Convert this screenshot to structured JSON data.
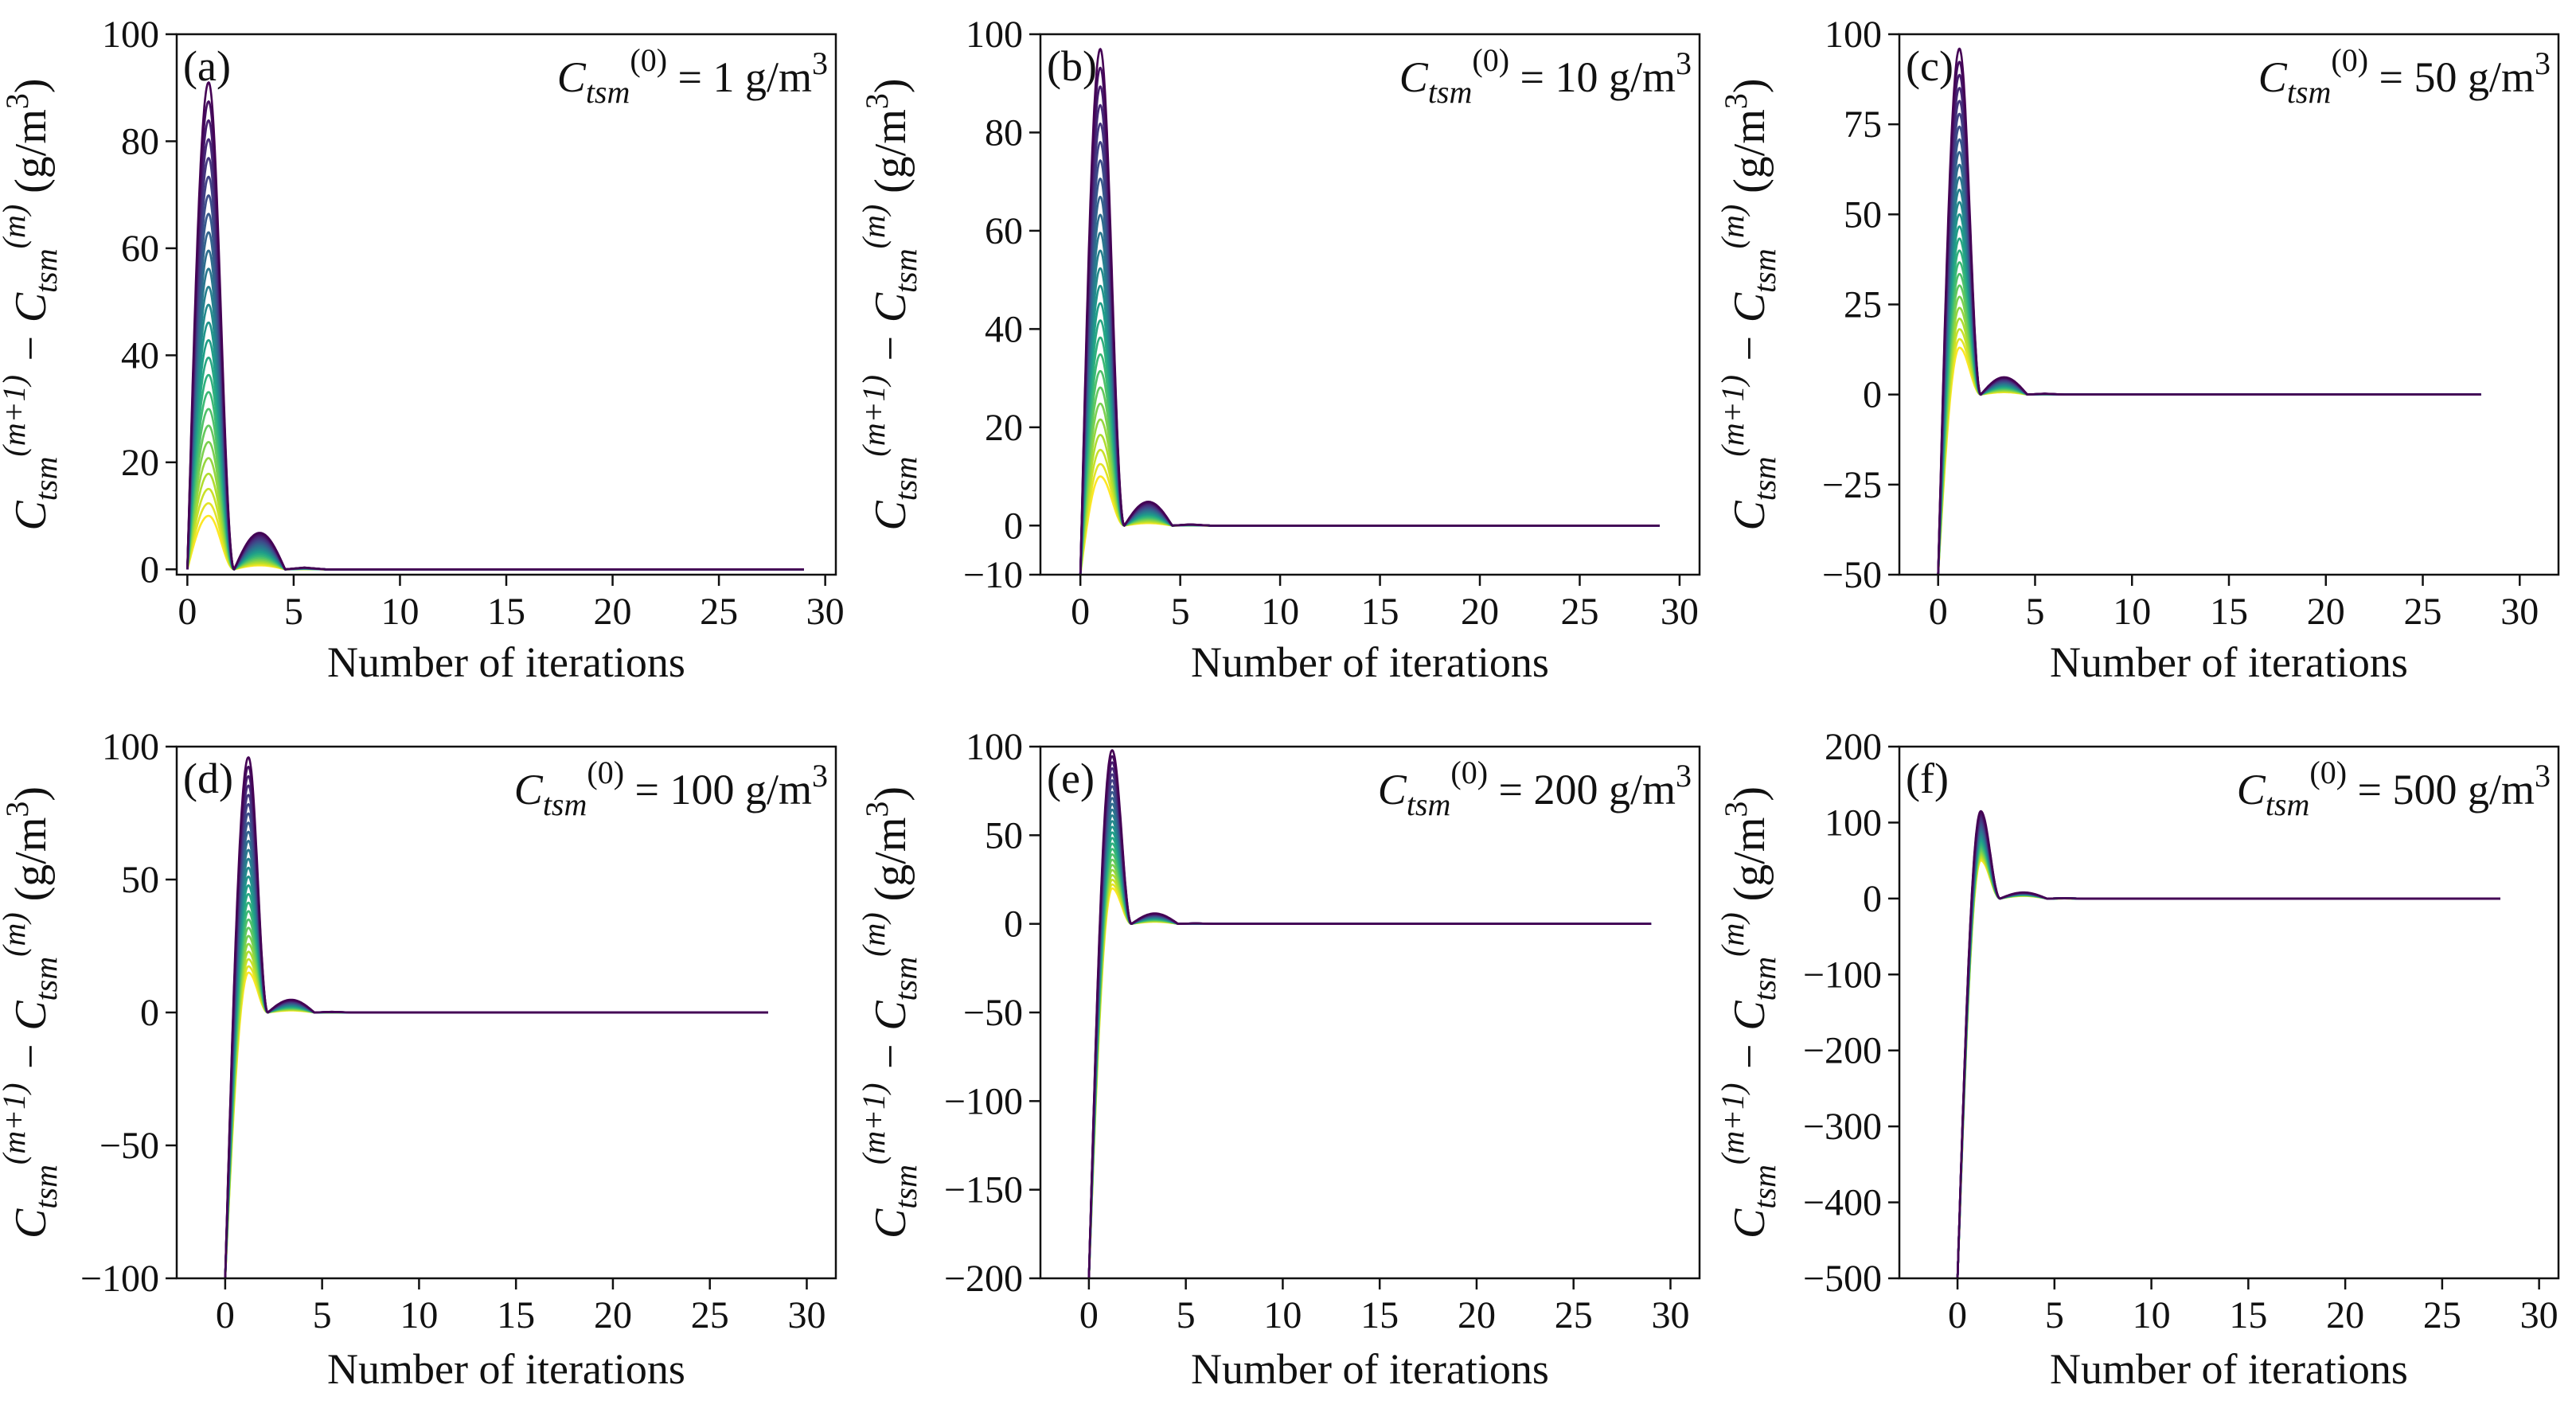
{
  "figure": {
    "x_axis_title": "Number of iterations",
    "colormap": [
      "#fde725",
      "#b5de2b",
      "#6ece58",
      "#35b779",
      "#1f9e89",
      "#26828e",
      "#31688e",
      "#3e4989",
      "#482878",
      "#440154"
    ]
  },
  "chart_data": [
    {
      "type": "line",
      "panel": "(a)",
      "annotation": {
        "prefix": "C",
        "sub": "tsm",
        "sup": "(0)",
        "suffix": " = 1 g/m",
        "unit_sup": "3"
      },
      "ylabel": "C_tsm^(m+1) − C_tsm^(m) (g/m^3)",
      "xlabel": "Number of iterations",
      "xlim": [
        -0.5,
        30.5
      ],
      "ylim": [
        -1,
        100
      ],
      "xticks": [
        0,
        5,
        10,
        15,
        20,
        25,
        30
      ],
      "yticks": [
        0,
        20,
        40,
        60,
        80,
        100
      ],
      "yticklabels": [
        "0",
        "20",
        "40",
        "60",
        "80",
        "100"
      ],
      "x_end": 29,
      "start_value": 0,
      "peak_x": 1,
      "peak_max": 91,
      "peak_min": 10,
      "second_bump_ratio": 0.075,
      "n_series": 26
    },
    {
      "type": "line",
      "panel": "(b)",
      "annotation": {
        "prefix": "C",
        "sub": "tsm",
        "sup": "(0)",
        "suffix": " = 10 g/m",
        "unit_sup": "3"
      },
      "ylabel": "C_tsm^(m+1) − C_tsm^(m) (g/m^3)",
      "xlabel": "Number of iterations",
      "xlim": [
        -2,
        31
      ],
      "ylim": [
        -10,
        100
      ],
      "xticks": [
        0,
        5,
        10,
        15,
        20,
        25,
        30
      ],
      "yticks": [
        -10,
        0,
        20,
        40,
        60,
        80,
        100
      ],
      "yticklabels": [
        "−10",
        "0",
        "20",
        "40",
        "60",
        "80",
        "100"
      ],
      "x_end": 29,
      "start_value": -10,
      "peak_x": 1,
      "peak_max": 97,
      "peak_min": 10,
      "second_bump_ratio": 0.05,
      "n_series": 26
    },
    {
      "type": "line",
      "panel": "(c)",
      "annotation": {
        "prefix": "C",
        "sub": "tsm",
        "sup": "(0)",
        "suffix": " = 50 g/m",
        "unit_sup": "3"
      },
      "ylabel": "C_tsm^(m+1) − C_tsm^(m) (g/m^3)",
      "xlabel": "Number of iterations",
      "xlim": [
        -2,
        32
      ],
      "ylim": [
        -50,
        100
      ],
      "xticks": [
        0,
        5,
        10,
        15,
        20,
        25,
        30
      ],
      "yticks": [
        -50,
        -25,
        0,
        25,
        50,
        75,
        100
      ],
      "yticklabels": [
        "−50",
        "−25",
        "0",
        "25",
        "50",
        "75",
        "100"
      ],
      "x_end": 28,
      "start_value": -50,
      "peak_x": 1.1,
      "peak_max": 96,
      "peak_min": 13,
      "second_bump_ratio": 0.05,
      "n_series": 26
    },
    {
      "type": "line",
      "panel": "(d)",
      "annotation": {
        "prefix": "C",
        "sub": "tsm",
        "sup": "(0)",
        "suffix": " = 100 g/m",
        "unit_sup": "3"
      },
      "ylabel": "C_tsm^(m+1) − C_tsm^(m) (g/m^3)",
      "xlabel": "Number of iterations",
      "xlim": [
        -2.5,
        31.5
      ],
      "ylim": [
        -100,
        100
      ],
      "xticks": [
        0,
        5,
        10,
        15,
        20,
        25,
        30
      ],
      "yticks": [
        -100,
        -50,
        0,
        50,
        100
      ],
      "yticklabels": [
        "−100",
        "−50",
        "0",
        "50",
        "100"
      ],
      "x_end": 28,
      "start_value": -100,
      "peak_x": 1.2,
      "peak_max": 96,
      "peak_min": 15,
      "second_bump_ratio": 0.05,
      "n_series": 26
    },
    {
      "type": "line",
      "panel": "(e)",
      "annotation": {
        "prefix": "C",
        "sub": "tsm",
        "sup": "(0)",
        "suffix": " = 200 g/m",
        "unit_sup": "3"
      },
      "ylabel": "C_tsm^(m+1) − C_tsm^(m) (g/m^3)",
      "xlabel": "Number of iterations",
      "xlim": [
        -2.5,
        31.5
      ],
      "ylim": [
        -200,
        100
      ],
      "xticks": [
        0,
        5,
        10,
        15,
        20,
        25,
        30
      ],
      "yticks": [
        -200,
        -150,
        -100,
        -50,
        0,
        50,
        100
      ],
      "yticklabels": [
        "−200",
        "−150",
        "−100",
        "−50",
        "0",
        "50",
        "100"
      ],
      "x_end": 29,
      "start_value": -200,
      "peak_x": 1.2,
      "peak_max": 98,
      "peak_min": 20,
      "second_bump_ratio": 0.06,
      "n_series": 26
    },
    {
      "type": "line",
      "panel": "(f)",
      "annotation": {
        "prefix": "C",
        "sub": "tsm",
        "sup": "(0)",
        "suffix": " = 500 g/m",
        "unit_sup": "3"
      },
      "ylabel": "C_tsm^(m+1) − C_tsm^(m) (g/m^3)",
      "xlabel": "Number of iterations",
      "xlim": [
        -3,
        31
      ],
      "ylim": [
        -500,
        200
      ],
      "xticks": [
        0,
        5,
        10,
        15,
        20,
        25,
        30
      ],
      "yticks": [
        -500,
        -400,
        -300,
        -200,
        -100,
        0,
        100,
        200
      ],
      "yticklabels": [
        "−500",
        "−400",
        "−300",
        "−200",
        "−100",
        "0",
        "100",
        "200"
      ],
      "x_end": 28,
      "start_value": -500,
      "peak_x": 1.2,
      "peak_max": 115,
      "peak_min": 50,
      "second_bump_ratio": 0.07,
      "n_series": 26
    }
  ]
}
